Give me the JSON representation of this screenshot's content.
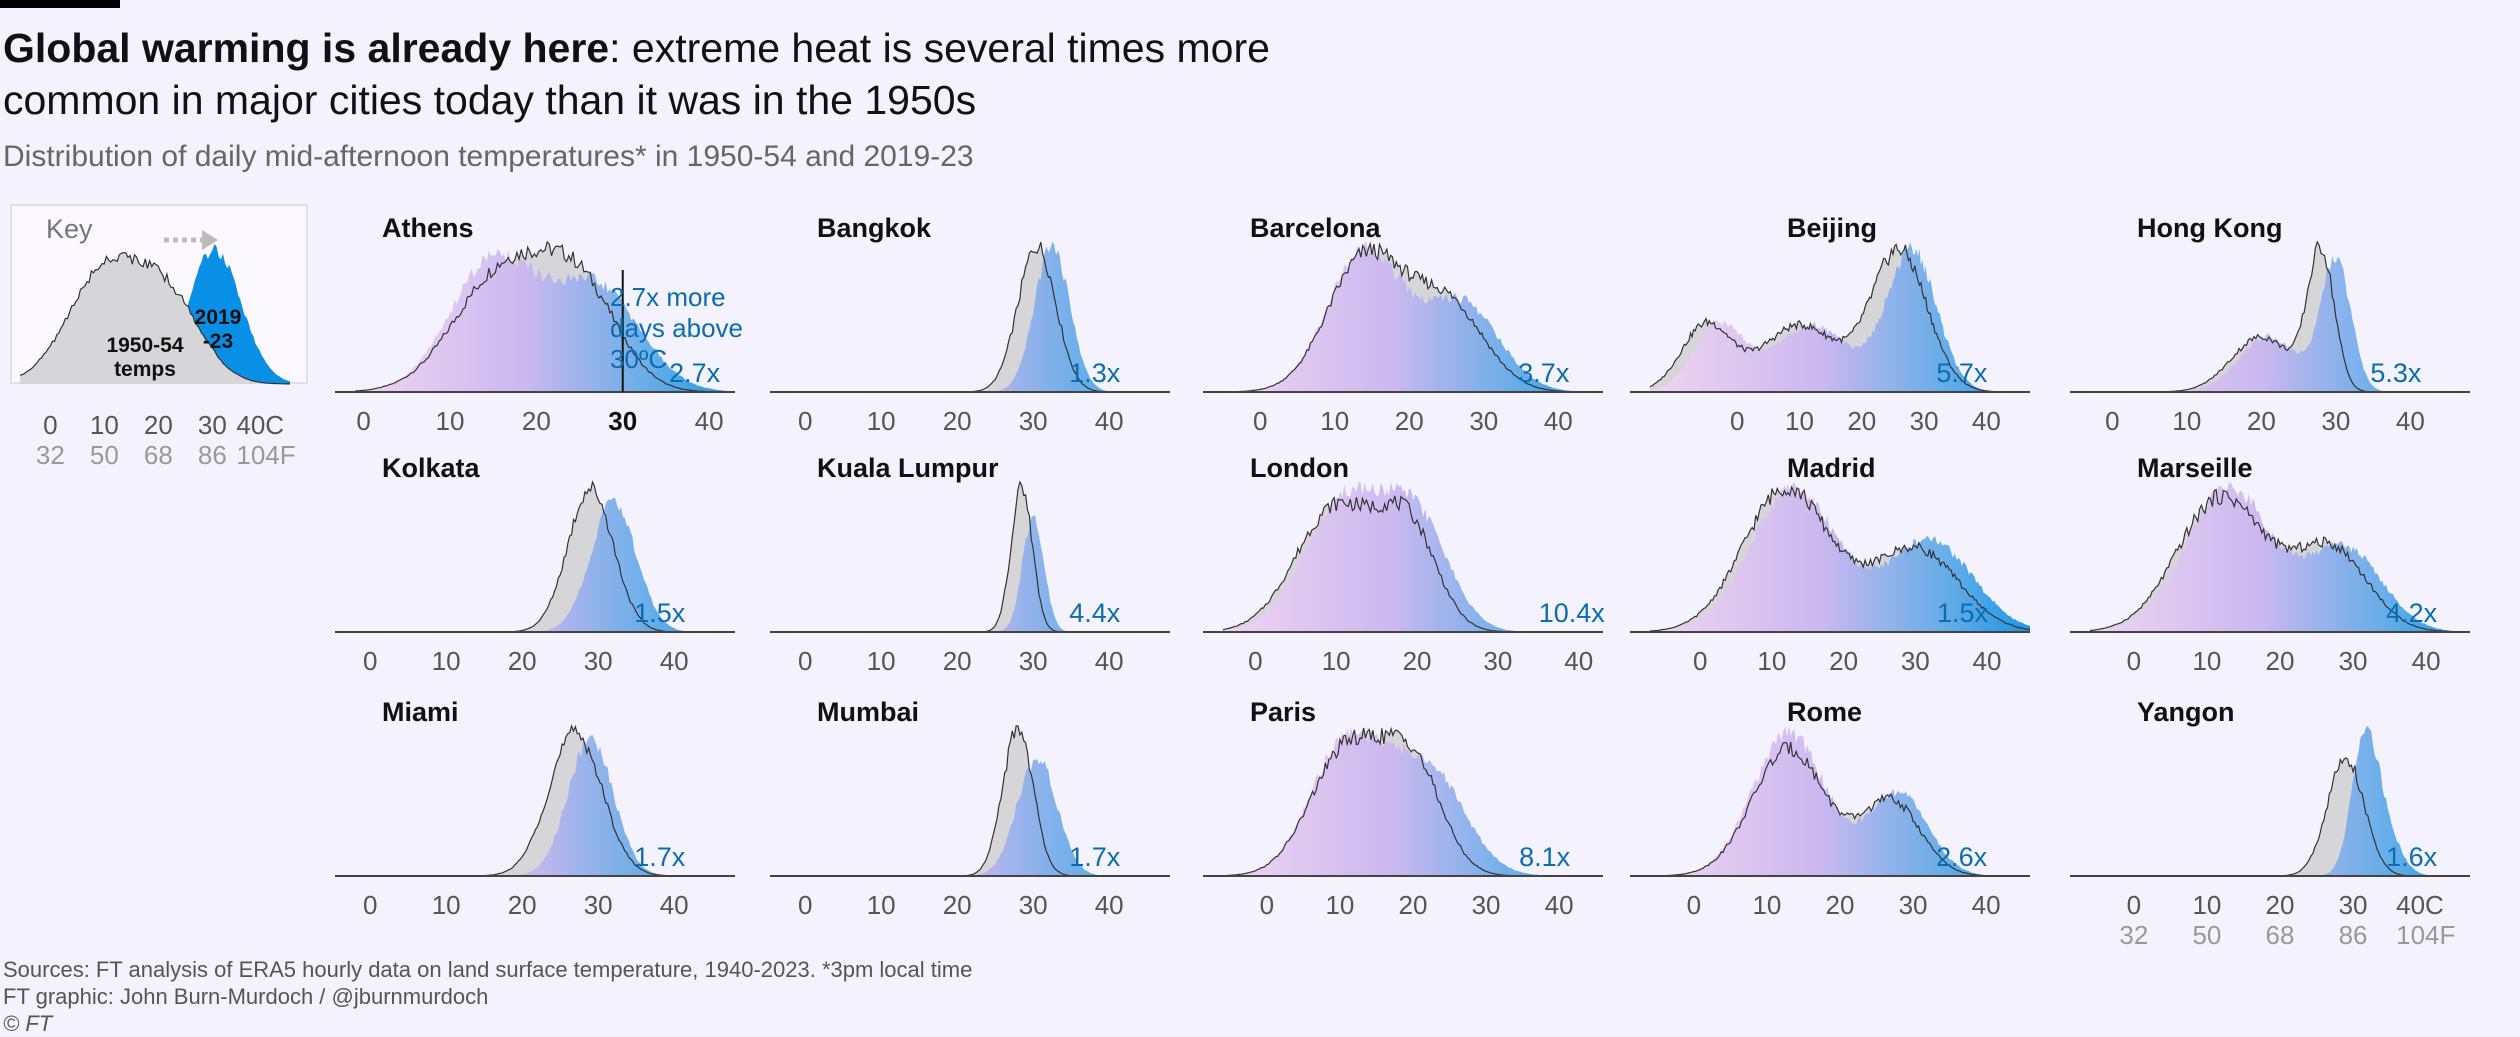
{
  "header": {
    "title_bold": "Global warming is already here",
    "title_rest": ": extreme heat is several times more common in major cities today than it was in the 1950s",
    "subtitle": "Distribution of daily mid-afternoon temperatures* in 1950-54 and 2019-23"
  },
  "key": {
    "title": "Key",
    "label_old": "1950-54 temps",
    "label_new": "2019 -23",
    "celsius_ticks": [
      "0",
      "10",
      "20",
      "30",
      "40C"
    ],
    "fahrenheit_ticks": [
      "32",
      "50",
      "68",
      "86",
      "104F"
    ]
  },
  "colors": {
    "background": "#f4f2fc",
    "old_fill": "#d6d6d8",
    "new_fill_warm": "#0a8fe6",
    "new_fill_cool": "#e9c8f6",
    "ratio_text": "#0b6db0",
    "axis": "#444444"
  },
  "annotation": {
    "athens_threshold": "30",
    "athens_note": [
      "2.7x more",
      "days above",
      "30ºC"
    ]
  },
  "chart_data": {
    "type": "area",
    "x_unit": "°C",
    "series_names": [
      "1950-54",
      "2019-23"
    ],
    "cities": [
      {
        "name": "Athens",
        "ratio": "2.7x",
        "ticks": [
          "0",
          "10",
          "20",
          "30",
          "40"
        ],
        "xlim": [
          -1,
          43
        ],
        "old": {
          "peaks": [
            [
              16,
              5.5,
              0.85
            ],
            [
              25,
              4.5,
              0.7
            ]
          ]
        },
        "new": {
          "peaks": [
            [
              15,
              5,
              0.95
            ],
            [
              27,
              5,
              0.75
            ]
          ]
        }
      },
      {
        "name": "Bangkok",
        "ratio": "1.3x",
        "ticks": [
          "0",
          "10",
          "20",
          "30",
          "40"
        ],
        "xlim": [
          -2,
          48
        ],
        "old": {
          "peaks": [
            [
              30.5,
              2.5,
              1.0
            ]
          ]
        },
        "new": {
          "peaks": [
            [
              32.5,
              2.3,
              1.0
            ]
          ]
        }
      },
      {
        "name": "Barcelona",
        "ratio": "3.7x",
        "ticks": [
          "0",
          "10",
          "20",
          "30",
          "40"
        ],
        "xlim": [
          -5,
          46
        ],
        "old": {
          "peaks": [
            [
              14,
              5,
              0.9
            ],
            [
              25,
              5,
              0.6
            ]
          ]
        },
        "new": {
          "peaks": [
            [
              14,
              5,
              0.95
            ],
            [
              27,
              5,
              0.6
            ]
          ]
        }
      },
      {
        "name": "Beijing",
        "ratio": "5.7x",
        "ticks": [
          "0",
          "10",
          "20",
          "30",
          "40"
        ],
        "xlim": [
          -14,
          47
        ],
        "old": {
          "peaks": [
            [
              -5,
              4,
              0.45
            ],
            [
              10,
              6,
              0.45
            ],
            [
              26,
              4.5,
              0.95
            ]
          ]
        },
        "new": {
          "peaks": [
            [
              -3,
              4,
              0.45
            ],
            [
              12,
              6,
              0.45
            ],
            [
              28,
              4,
              0.95
            ]
          ]
        }
      },
      {
        "name": "Hong Kong",
        "ratio": "5.3x",
        "ticks": [
          "0",
          "10",
          "20",
          "30",
          "40"
        ],
        "xlim": [
          -3,
          48
        ],
        "old": {
          "peaks": [
            [
              20,
              4,
              0.4
            ],
            [
              28,
              1.8,
              1.0
            ]
          ]
        },
        "new": {
          "peaks": [
            [
              21,
              4,
              0.4
            ],
            [
              30,
              2,
              0.95
            ]
          ]
        }
      },
      {
        "name": "Kolkata",
        "ratio": "1.5x",
        "ticks": [
          "0",
          "10",
          "20",
          "30",
          "40"
        ],
        "xlim": [
          -2,
          48
        ],
        "old": {
          "peaks": [
            [
              29,
              3,
              1.0
            ]
          ]
        },
        "new": {
          "peaks": [
            [
              32,
              3,
              0.9
            ]
          ]
        }
      },
      {
        "name": "Kuala Lumpur",
        "ratio": "4.4x",
        "ticks": [
          "0",
          "10",
          "20",
          "30",
          "40"
        ],
        "xlim": [
          -2,
          48
        ],
        "old": {
          "peaks": [
            [
              28.5,
              1.4,
              1.0
            ]
          ]
        },
        "new": {
          "peaks": [
            [
              30,
              1.4,
              0.8
            ]
          ]
        }
      },
      {
        "name": "London",
        "ratio": "10.4x",
        "ticks": [
          "0",
          "10",
          "20",
          "30",
          "40"
        ],
        "xlim": [
          -4,
          43
        ],
        "old": {
          "peaks": [
            [
              10,
              5,
              0.9
            ],
            [
              19,
              3.5,
              0.7
            ]
          ]
        },
        "new": {
          "peaks": [
            [
              11,
              5,
              0.95
            ],
            [
              20,
              4,
              0.75
            ]
          ]
        }
      },
      {
        "name": "Madrid",
        "ratio": "1.5x",
        "ticks": [
          "0",
          "10",
          "20",
          "30",
          "40"
        ],
        "xlim": [
          -7,
          46
        ],
        "old": {
          "peaks": [
            [
              12,
              6,
              0.95
            ],
            [
              30,
              6,
              0.55
            ]
          ]
        },
        "new": {
          "peaks": [
            [
              13,
              6,
              0.95
            ],
            [
              32,
              6,
              0.6
            ]
          ]
        }
      },
      {
        "name": "Marseille",
        "ratio": "4.2x",
        "ticks": [
          "0",
          "10",
          "20",
          "30",
          "40"
        ],
        "xlim": [
          -6,
          46
        ],
        "old": {
          "peaks": [
            [
              12,
              6,
              0.9
            ],
            [
              27,
              5,
              0.55
            ]
          ]
        },
        "new": {
          "peaks": [
            [
              13,
              6,
              0.95
            ],
            [
              29,
              5,
              0.55
            ]
          ]
        }
      },
      {
        "name": "Miami",
        "ratio": "1.7x",
        "ticks": [
          "0",
          "10",
          "20",
          "30",
          "40"
        ],
        "xlim": [
          -2,
          48
        ],
        "old": {
          "peaks": [
            [
              27,
              3.5,
              1.0
            ]
          ]
        },
        "new": {
          "peaks": [
            [
              29,
              3,
              0.95
            ]
          ]
        }
      },
      {
        "name": "Mumbai",
        "ratio": "1.7x",
        "ticks": [
          "0",
          "10",
          "20",
          "30",
          "40"
        ],
        "xlim": [
          -2,
          48
        ],
        "old": {
          "peaks": [
            [
              28,
              2,
              1.0
            ]
          ]
        },
        "new": {
          "peaks": [
            [
              30.5,
              2.6,
              0.8
            ]
          ]
        }
      },
      {
        "name": "Paris",
        "ratio": "8.1x",
        "ticks": [
          "0",
          "10",
          "20",
          "30",
          "40"
        ],
        "xlim": [
          -6,
          46
        ],
        "old": {
          "peaks": [
            [
              11,
              5,
              0.85
            ],
            [
              20,
              4,
              0.7
            ]
          ]
        },
        "new": {
          "peaks": [
            [
              11,
              5,
              0.9
            ],
            [
              22,
              5,
              0.7
            ]
          ]
        }
      },
      {
        "name": "Rome",
        "ratio": "2.6x",
        "ticks": [
          "0",
          "10",
          "20",
          "30",
          "40"
        ],
        "xlim": [
          -6,
          46
        ],
        "old": {
          "peaks": [
            [
              13,
              5,
              0.85
            ],
            [
              27,
              4,
              0.5
            ]
          ]
        },
        "new": {
          "peaks": [
            [
              13,
              5,
              0.95
            ],
            [
              28,
              4,
              0.55
            ]
          ]
        }
      },
      {
        "name": "Yangon",
        "ratio": "1.6x",
        "ticks": [
          "0",
          "10",
          "20",
          "30",
          "40C"
        ],
        "fticks": [
          "32",
          "50",
          "68",
          "86",
          "104F"
        ],
        "xlim": [
          -6,
          46
        ],
        "old": {
          "peaks": [
            [
              29,
              2.5,
              1.0
            ]
          ]
        },
        "new": {
          "peaks": [
            [
              31.5,
              1.8,
              1.0
            ],
            [
              34,
              2.2,
              0.4
            ]
          ]
        }
      }
    ]
  },
  "footer": {
    "sources": "Sources: FT analysis of ERA5 hourly data on land surface temperature, 1940-2023.   *3pm local time",
    "graphic": "FT graphic: John Burn-Murdoch / @jburnmurdoch",
    "copyright": "© FT"
  }
}
